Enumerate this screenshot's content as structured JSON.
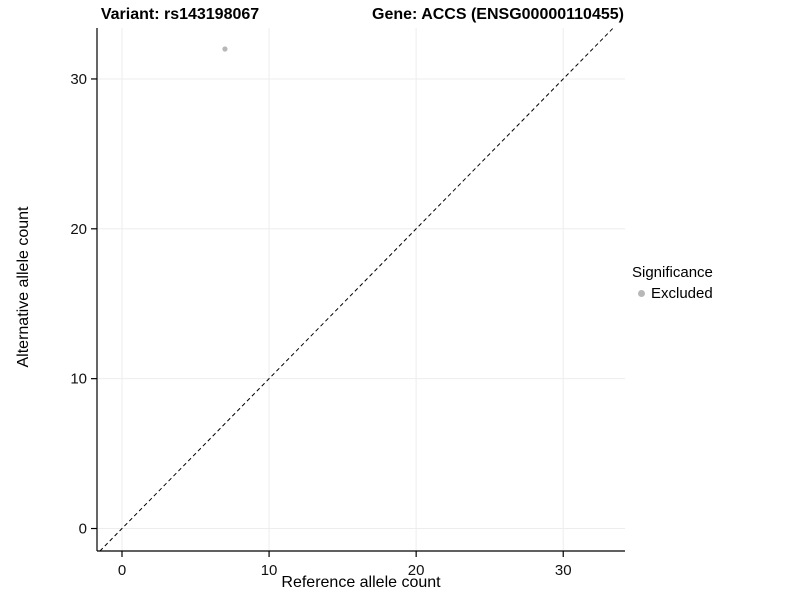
{
  "header": {
    "title_left": "Variant: rs143198067",
    "title_right": "Gene: ACCS (ENSG00000110455)"
  },
  "chart_data": {
    "type": "scatter",
    "title": "Variant: rs143198067    Gene: ACCS (ENSG00000110455)",
    "xlabel": "Reference allele count",
    "ylabel": "Alternative allele count",
    "xlim": [
      -1.7,
      34.2
    ],
    "ylim": [
      -1.5,
      33.4
    ],
    "xticks": [
      0,
      10,
      20,
      30
    ],
    "yticks": [
      0,
      10,
      20,
      30
    ],
    "grid": true,
    "gridline_color": "#ededed",
    "background_color": "#ffffff",
    "points": [
      {
        "x": 7,
        "y": 32,
        "series": "Excluded",
        "color": "#b8b8b8"
      }
    ],
    "identity_line": {
      "style": "dashed",
      "slope": 1,
      "intercept": 0,
      "color": "#000000"
    },
    "legend": {
      "title": "Significance",
      "position": "right",
      "entries": [
        {
          "label": "Excluded",
          "color": "#b8b8b8"
        }
      ]
    }
  }
}
